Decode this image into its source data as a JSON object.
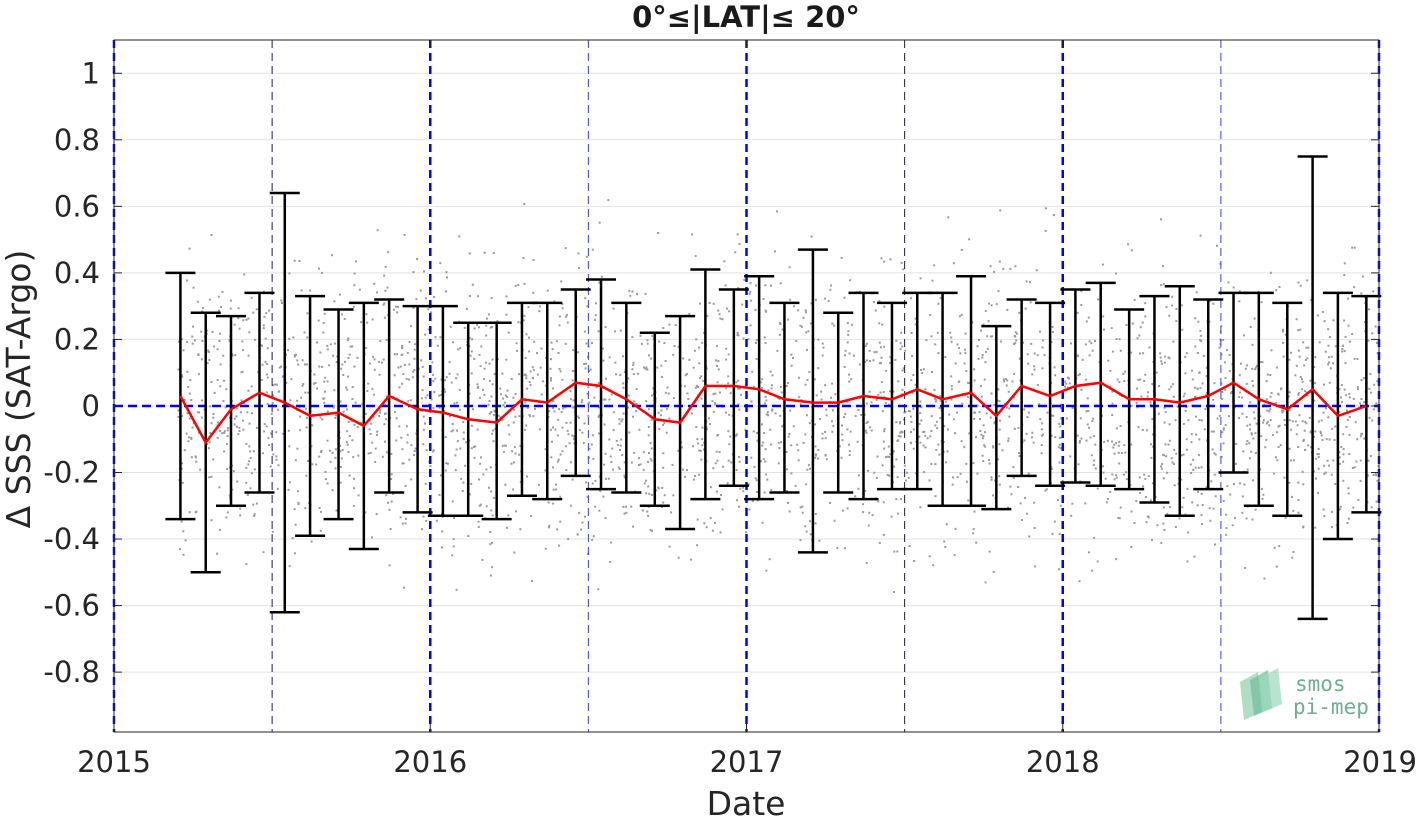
{
  "chart_data": {
    "type": "line",
    "title": "0°≤|LAT|≤ 20°",
    "xlabel": "Date",
    "ylabel": "Δ SSS (SAT-Argo)",
    "x_ticks": [
      "2015",
      "2016",
      "2017",
      "2018",
      "2019"
    ],
    "y_ticks": [
      "-0.8",
      "-0.6",
      "-0.4",
      "-0.2",
      "0",
      "0.2",
      "0.4",
      "0.6",
      "0.8",
      "1"
    ],
    "xlim": [
      2015.0,
      2019.0
    ],
    "ylim": [
      -0.98,
      1.1
    ],
    "grid": "horizontal",
    "reference_line": {
      "y": 0,
      "style": "dashed",
      "color": "#0000ff"
    },
    "vertical_lines": {
      "thick_blue_dashed": [
        2015.0,
        2016.0,
        2017.0,
        2018.0,
        2019.0
      ],
      "thin_blue_dashed": [
        2016.5,
        2018.5
      ],
      "thin_dark_dashed": [
        2015.5,
        2017.5
      ]
    },
    "series": [
      {
        "name": "",
        "color": "#ff0000",
        "style": "line with error bars",
        "x": [
          2015.21,
          2015.29,
          2015.37,
          2015.46,
          2015.54,
          2015.62,
          2015.71,
          2015.79,
          2015.87,
          2015.96,
          2016.04,
          2016.12,
          2016.21,
          2016.29,
          2016.37,
          2016.46,
          2016.54,
          2016.62,
          2016.71,
          2016.79,
          2016.87,
          2016.96,
          2017.04,
          2017.12,
          2017.21,
          2017.29,
          2017.37,
          2017.46,
          2017.54,
          2017.62,
          2017.71,
          2017.79,
          2017.87,
          2017.96,
          2018.04,
          2018.12,
          2018.21,
          2018.29,
          2018.37,
          2018.46,
          2018.54,
          2018.62,
          2018.71,
          2018.79,
          2018.87,
          2018.96
        ],
        "mean": [
          0.03,
          -0.11,
          -0.01,
          0.04,
          0.01,
          -0.03,
          -0.02,
          -0.06,
          0.03,
          -0.01,
          -0.02,
          -0.04,
          -0.05,
          0.02,
          0.01,
          0.07,
          0.06,
          0.02,
          -0.04,
          -0.05,
          0.06,
          0.06,
          0.05,
          0.02,
          0.01,
          0.01,
          0.03,
          0.02,
          0.05,
          0.02,
          0.04,
          -0.03,
          0.06,
          0.03,
          0.06,
          0.07,
          0.02,
          0.02,
          0.01,
          0.03,
          0.07,
          0.02,
          -0.01,
          0.05,
          -0.03,
          0.0
        ],
        "upper": [
          0.4,
          0.28,
          0.27,
          0.34,
          0.64,
          0.33,
          0.29,
          0.31,
          0.32,
          0.3,
          0.3,
          0.25,
          0.25,
          0.31,
          0.31,
          0.35,
          0.38,
          0.31,
          0.22,
          0.27,
          0.41,
          0.35,
          0.39,
          0.31,
          0.47,
          0.28,
          0.34,
          0.31,
          0.34,
          0.34,
          0.39,
          0.24,
          0.32,
          0.31,
          0.35,
          0.37,
          0.29,
          0.33,
          0.36,
          0.32,
          0.34,
          0.34,
          0.31,
          0.75,
          0.34,
          0.33
        ],
        "lower": [
          -0.34,
          -0.5,
          -0.3,
          -0.26,
          -0.62,
          -0.39,
          -0.34,
          -0.43,
          -0.26,
          -0.32,
          -0.33,
          -0.33,
          -0.34,
          -0.27,
          -0.28,
          -0.21,
          -0.25,
          -0.26,
          -0.3,
          -0.37,
          -0.28,
          -0.24,
          -0.28,
          -0.26,
          -0.44,
          -0.26,
          -0.28,
          -0.25,
          -0.25,
          -0.3,
          -0.3,
          -0.31,
          -0.21,
          -0.24,
          -0.23,
          -0.24,
          -0.25,
          -0.29,
          -0.33,
          -0.25,
          -0.2,
          -0.3,
          -0.33,
          -0.64,
          -0.4,
          -0.32
        ]
      }
    ],
    "scatter": {
      "color": "#9a9a9a",
      "description_count": 3000
    }
  },
  "logo": {
    "line1": "smos",
    "line2": "pi-mep"
  }
}
